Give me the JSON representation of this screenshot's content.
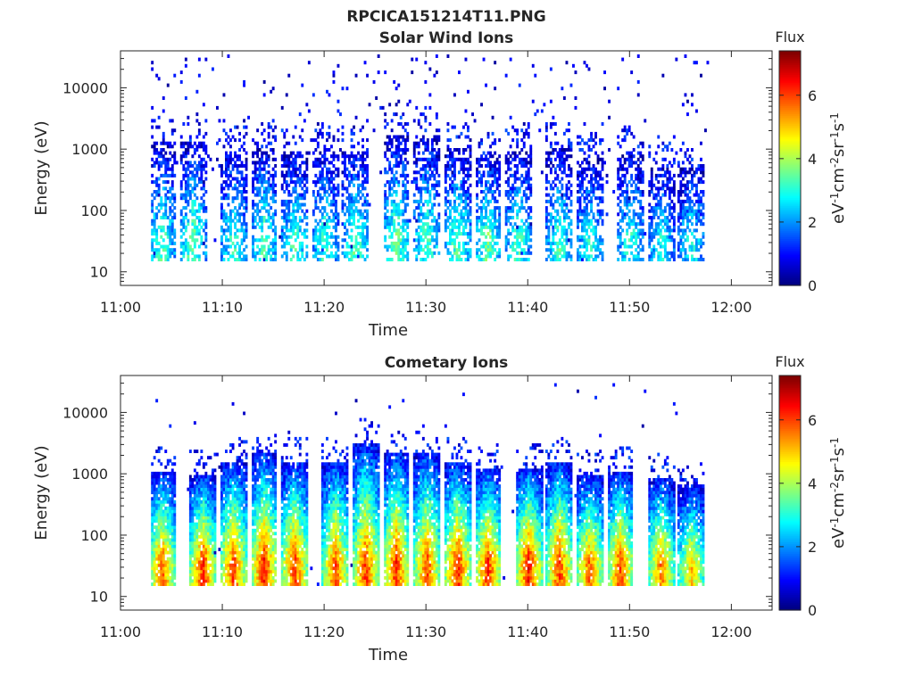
{
  "figure": {
    "title": "RPCICA151214T11.PNG"
  },
  "chart_data": [
    {
      "type": "heatmap",
      "title": "Solar Wind Ions",
      "xlabel": "Time",
      "ylabel": "Energy (eV)",
      "x_scale": "linear",
      "y_scale": "log",
      "xlim": [
        "11:00",
        "12:04"
      ],
      "ylim": [
        6,
        40000
      ],
      "x_ticks": [
        "11:00",
        "11:10",
        "11:20",
        "11:30",
        "11:40",
        "11:50",
        "12:00"
      ],
      "y_ticks": [
        "10",
        "100",
        "1000",
        "10000"
      ],
      "colorbar": {
        "title": "Flux",
        "label": "eV^-1 cm^-2 sr^-1 s^-1",
        "label_parts": [
          "eV",
          "-1",
          "cm",
          "-2",
          "sr",
          "-1",
          "s",
          "-1"
        ],
        "range": [
          0,
          7.4
        ],
        "ticks": [
          "0",
          "2",
          "4",
          "6"
        ],
        "colormap": "jet"
      },
      "data_extent": {
        "x_start": "11:03",
        "x_end": "11:58",
        "y_min": 15,
        "y_max": 35000
      },
      "bursts": [
        {
          "t": "11:04",
          "peak_energy_eV": 35,
          "max_energy_eV": 1200,
          "peak_flux": 3.4
        },
        {
          "t": "11:07",
          "peak_energy_eV": 35,
          "max_energy_eV": 1200,
          "peak_flux": 3.6
        },
        {
          "t": "11:11",
          "peak_energy_eV": 35,
          "max_energy_eV": 900,
          "peak_flux": 3.2
        },
        {
          "t": "11:14",
          "peak_energy_eV": 35,
          "max_energy_eV": 1000,
          "peak_flux": 3.4
        },
        {
          "t": "11:17",
          "peak_energy_eV": 35,
          "max_energy_eV": 900,
          "peak_flux": 3.3
        },
        {
          "t": "11:20",
          "peak_energy_eV": 35,
          "max_energy_eV": 900,
          "peak_flux": 3.2
        },
        {
          "t": "11:23",
          "peak_energy_eV": 35,
          "max_energy_eV": 900,
          "peak_flux": 3.5
        },
        {
          "t": "11:27",
          "peak_energy_eV": 35,
          "max_energy_eV": 1500,
          "peak_flux": 3.6
        },
        {
          "t": "11:30",
          "peak_energy_eV": 35,
          "max_energy_eV": 1500,
          "peak_flux": 3.4
        },
        {
          "t": "11:33",
          "peak_energy_eV": 35,
          "max_energy_eV": 1000,
          "peak_flux": 3.5
        },
        {
          "t": "11:36",
          "peak_energy_eV": 35,
          "max_energy_eV": 800,
          "peak_flux": 3.6
        },
        {
          "t": "11:39",
          "peak_energy_eV": 35,
          "max_energy_eV": 900,
          "peak_flux": 3.3
        },
        {
          "t": "11:43",
          "peak_energy_eV": 35,
          "max_energy_eV": 1000,
          "peak_flux": 3.3
        },
        {
          "t": "11:46",
          "peak_energy_eV": 35,
          "max_energy_eV": 700,
          "peak_flux": 3.0
        },
        {
          "t": "11:50",
          "peak_energy_eV": 35,
          "max_energy_eV": 800,
          "peak_flux": 3.1
        },
        {
          "t": "11:53",
          "peak_energy_eV": 35,
          "max_energy_eV": 500,
          "peak_flux": 2.9
        },
        {
          "t": "11:56",
          "peak_energy_eV": 35,
          "max_energy_eV": 500,
          "peak_flux": 2.9
        }
      ]
    },
    {
      "type": "heatmap",
      "title": "Cometary Ions",
      "xlabel": "Time",
      "ylabel": "Energy (eV)",
      "x_scale": "linear",
      "y_scale": "log",
      "xlim": [
        "11:00",
        "12:04"
      ],
      "ylim": [
        6,
        40000
      ],
      "x_ticks": [
        "11:00",
        "11:10",
        "11:20",
        "11:30",
        "11:40",
        "11:50",
        "12:00"
      ],
      "y_ticks": [
        "10",
        "100",
        "1000",
        "10000"
      ],
      "colorbar": {
        "title": "Flux",
        "label": "eV^-1 cm^-2 sr^-1 s^-1",
        "label_parts": [
          "eV",
          "-1",
          "cm",
          "-2",
          "sr",
          "-1",
          "s",
          "-1"
        ],
        "range": [
          0,
          7.4
        ],
        "ticks": [
          "0",
          "2",
          "4",
          "6"
        ],
        "colormap": "jet"
      },
      "data_extent": {
        "x_start": "11:03",
        "x_end": "11:58",
        "y_min": 15,
        "y_max": 30000
      },
      "bursts": [
        {
          "t": "11:04",
          "peak_energy_eV": 35,
          "max_energy_eV": 1000,
          "peak_flux": 5.8
        },
        {
          "t": "11:08",
          "peak_energy_eV": 35,
          "max_energy_eV": 900,
          "peak_flux": 6.2
        },
        {
          "t": "11:11",
          "peak_energy_eV": 35,
          "max_energy_eV": 1500,
          "peak_flux": 6.0
        },
        {
          "t": "11:14",
          "peak_energy_eV": 35,
          "max_energy_eV": 2000,
          "peak_flux": 6.3
        },
        {
          "t": "11:17",
          "peak_energy_eV": 35,
          "max_energy_eV": 1500,
          "peak_flux": 6.1
        },
        {
          "t": "11:21",
          "peak_energy_eV": 35,
          "max_energy_eV": 1500,
          "peak_flux": 5.9
        },
        {
          "t": "11:24",
          "peak_energy_eV": 35,
          "max_energy_eV": 3000,
          "peak_flux": 6.1
        },
        {
          "t": "11:27",
          "peak_energy_eV": 35,
          "max_energy_eV": 2000,
          "peak_flux": 6.2
        },
        {
          "t": "11:30",
          "peak_energy_eV": 35,
          "max_energy_eV": 2000,
          "peak_flux": 6.0
        },
        {
          "t": "11:33",
          "peak_energy_eV": 35,
          "max_energy_eV": 1500,
          "peak_flux": 6.3
        },
        {
          "t": "11:36",
          "peak_energy_eV": 35,
          "max_energy_eV": 1200,
          "peak_flux": 6.2
        },
        {
          "t": "11:40",
          "peak_energy_eV": 35,
          "max_energy_eV": 1200,
          "peak_flux": 6.4
        },
        {
          "t": "11:43",
          "peak_energy_eV": 35,
          "max_energy_eV": 1500,
          "peak_flux": 6.1
        },
        {
          "t": "11:46",
          "peak_energy_eV": 35,
          "max_energy_eV": 900,
          "peak_flux": 5.8
        },
        {
          "t": "11:49",
          "peak_energy_eV": 35,
          "max_energy_eV": 1000,
          "peak_flux": 6.0
        },
        {
          "t": "11:53",
          "peak_energy_eV": 35,
          "max_energy_eV": 800,
          "peak_flux": 5.6
        },
        {
          "t": "11:56",
          "peak_energy_eV": 35,
          "max_energy_eV": 600,
          "peak_flux": 5.0
        }
      ]
    }
  ]
}
